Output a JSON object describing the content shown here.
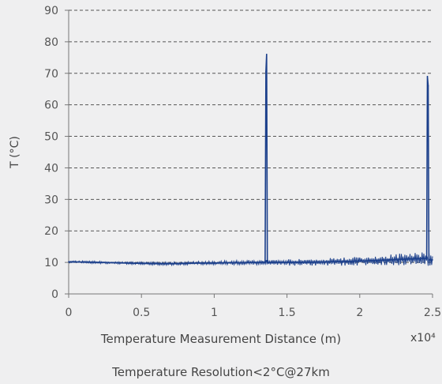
{
  "chart_data": {
    "type": "line",
    "xlabel": "Temperature Measurement Distance (m)",
    "x_multiplier_label": "x10⁴",
    "ylabel": "T (°C)",
    "caption": "Temperature Resolution<2°C@27km",
    "xlim": [
      0,
      2.5
    ],
    "ylim": [
      0,
      90
    ],
    "x_ticks": [
      0,
      0.5,
      1,
      1.5,
      2,
      2.5
    ],
    "x_tick_labels": [
      "0",
      "0.5",
      "1",
      "1.5",
      "2",
      "2.5"
    ],
    "y_ticks": [
      0,
      10,
      20,
      30,
      40,
      50,
      60,
      70,
      80,
      90
    ],
    "y_tick_labels": [
      "0",
      "10",
      "20",
      "30",
      "40",
      "50",
      "60",
      "70",
      "80",
      "90"
    ],
    "grid": "horizontal-dashed",
    "series": [
      {
        "color": "#1b3f8b",
        "x": [
          0,
          0.1,
          0.2,
          0.3,
          0.4,
          0.5,
          0.6,
          0.7,
          0.8,
          0.9,
          1.0,
          1.1,
          1.2,
          1.3,
          1.35,
          1.355,
          1.36,
          1.365,
          1.37,
          1.4,
          1.5,
          1.6,
          1.7,
          1.8,
          1.9,
          2.0,
          2.1,
          2.2,
          2.3,
          2.4,
          2.46,
          2.465,
          2.47,
          2.475,
          2.48,
          2.5
        ],
        "y": [
          10.2,
          10.1,
          10.0,
          9.9,
          9.8,
          9.7,
          9.6,
          9.6,
          9.7,
          9.8,
          9.8,
          9.9,
          9.9,
          10.0,
          10.0,
          70.5,
          76.0,
          9.8,
          10.0,
          10.0,
          10.0,
          10.0,
          10.1,
          10.2,
          10.3,
          10.4,
          10.6,
          10.8,
          11.0,
          11.2,
          11.3,
          69.0,
          66.0,
          11.0,
          10.8,
          10.8
        ]
      }
    ]
  }
}
